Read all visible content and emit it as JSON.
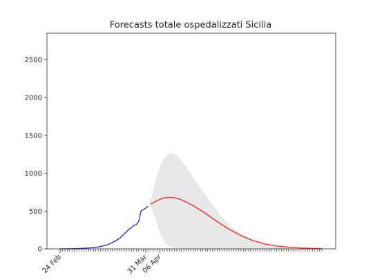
{
  "chart_data": {
    "type": "line",
    "title": "Forecasts totale ospedalizzati Sicilia",
    "xlabel": "",
    "ylabel": "",
    "x_start": "2020-02-24",
    "x_end": "2020-06-13",
    "xtick_labels": [
      {
        "label": "24 Feb",
        "date": "2020-02-24"
      },
      {
        "label": "31 Mar",
        "date": "2020-03-31"
      },
      {
        "label": "06 Apr",
        "date": "2020-04-06"
      }
    ],
    "ylim": [
      0,
      2850
    ],
    "yticks": [
      0,
      500,
      1000,
      1500,
      2000,
      2500
    ],
    "grid": false,
    "series": [
      {
        "color": "#3333cc",
        "points": [
          [
            "2020-02-24",
            0
          ],
          [
            "2020-02-26",
            1
          ],
          [
            "2020-02-28",
            2
          ],
          [
            "2020-03-01",
            3
          ],
          [
            "2020-03-03",
            5
          ],
          [
            "2020-03-05",
            8
          ],
          [
            "2020-03-07",
            12
          ],
          [
            "2020-03-09",
            18
          ],
          [
            "2020-03-11",
            25
          ],
          [
            "2020-03-13",
            38
          ],
          [
            "2020-03-15",
            55
          ],
          [
            "2020-03-17",
            85
          ],
          [
            "2020-03-19",
            120
          ],
          [
            "2020-03-20",
            140
          ],
          [
            "2020-03-22",
            200
          ],
          [
            "2020-03-24",
            260
          ],
          [
            "2020-03-25",
            280
          ],
          [
            "2020-03-26",
            310
          ],
          [
            "2020-03-27",
            320
          ],
          [
            "2020-03-28",
            360
          ],
          [
            "2020-03-29",
            500
          ],
          [
            "2020-03-30",
            520
          ],
          [
            "2020-03-31",
            540
          ],
          [
            "2020-04-01",
            565
          ]
        ]
      },
      {
        "color": "#ff2a2a",
        "points": [
          [
            "2020-04-02",
            590
          ],
          [
            "2020-04-04",
            625
          ],
          [
            "2020-04-06",
            655
          ],
          [
            "2020-04-08",
            675
          ],
          [
            "2020-04-10",
            682
          ],
          [
            "2020-04-12",
            675
          ],
          [
            "2020-04-14",
            660
          ],
          [
            "2020-04-16",
            635
          ],
          [
            "2020-04-20",
            570
          ],
          [
            "2020-04-25",
            470
          ],
          [
            "2020-04-30",
            360
          ],
          [
            "2020-05-05",
            260
          ],
          [
            "2020-05-10",
            175
          ],
          [
            "2020-05-15",
            110
          ],
          [
            "2020-05-20",
            65
          ],
          [
            "2020-05-25",
            38
          ],
          [
            "2020-05-30",
            22
          ],
          [
            "2020-06-04",
            12
          ],
          [
            "2020-06-09",
            6
          ],
          [
            "2020-06-13",
            4
          ]
        ]
      }
    ],
    "band": {
      "color": "#e8e8e8",
      "points": [
        [
          "2020-04-02",
          620,
          580
        ],
        [
          "2020-04-04",
          900,
          400
        ],
        [
          "2020-04-06",
          1100,
          200
        ],
        [
          "2020-04-08",
          1210,
          80
        ],
        [
          "2020-04-10",
          1265,
          30
        ],
        [
          "2020-04-12",
          1250,
          15
        ],
        [
          "2020-04-14",
          1200,
          8
        ],
        [
          "2020-04-17",
          1080,
          4
        ],
        [
          "2020-04-20",
          940,
          2
        ],
        [
          "2020-04-24",
          760,
          1
        ],
        [
          "2020-04-28",
          580,
          0
        ],
        [
          "2020-05-02",
          420,
          0
        ],
        [
          "2020-05-06",
          290,
          0
        ],
        [
          "2020-05-10",
          190,
          0
        ],
        [
          "2020-05-15",
          110,
          0
        ],
        [
          "2020-05-20",
          60,
          0
        ],
        [
          "2020-05-27",
          28,
          0
        ],
        [
          "2020-06-03",
          12,
          0
        ],
        [
          "2020-06-13",
          4,
          0
        ]
      ]
    }
  }
}
